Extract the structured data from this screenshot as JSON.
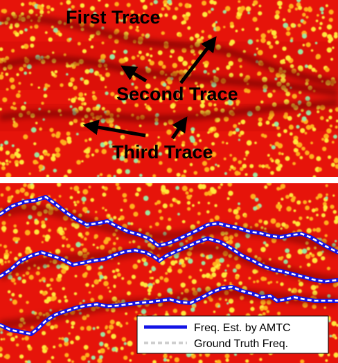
{
  "top_panel": {
    "labels": {
      "first": "First Trace",
      "second": "Second Trace",
      "third": "Third Trace"
    }
  },
  "bottom_panel": {
    "legend": {
      "estimate_label": "Freq. Est. by AMTC",
      "truth_label": "Ground Truth Freq."
    }
  },
  "colors": {
    "background": "#e6140a",
    "speckle": "#ffd21e",
    "trace_dark": "#6e0000",
    "estimate_line": "#1414e6",
    "truth_line": "#ffffff",
    "text": "#000000"
  },
  "icons": [
    "arrow-icon"
  ]
}
